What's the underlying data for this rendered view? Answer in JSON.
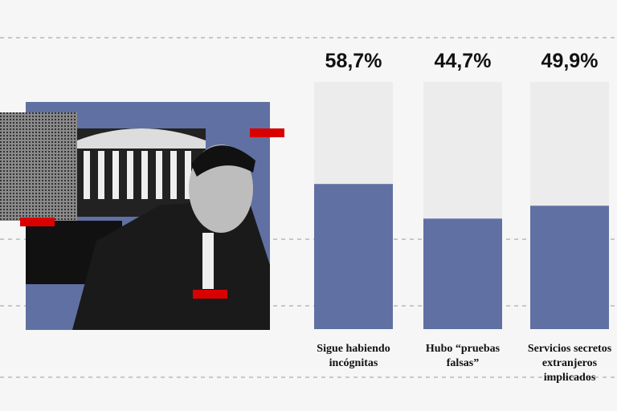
{
  "chart_data": {
    "type": "bar",
    "categories": [
      "Sigue habiendo incógnitas",
      "Hubo “pruebas falsas”",
      "Servicios secretos extranjeros implicados"
    ],
    "values": [
      58.7,
      44.7,
      49.9
    ],
    "value_labels": [
      "58,7%",
      "44,7%",
      "49,9%"
    ],
    "color": "#6070a2",
    "track_color": "#ececec",
    "ylim": [
      0,
      100
    ]
  }
}
